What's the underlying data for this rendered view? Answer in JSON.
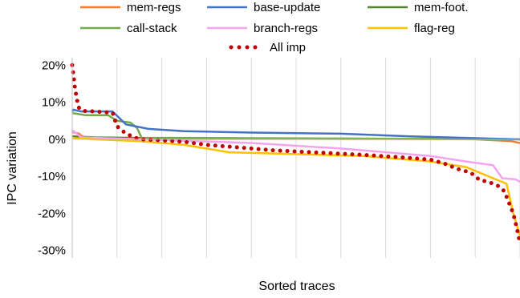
{
  "chart_data": {
    "type": "line",
    "xlabel": "Sorted traces",
    "ylabel": "IPC variation",
    "ylim": [
      -32,
      22
    ],
    "yticks": [
      20,
      10,
      0,
      -10,
      -20,
      -30
    ],
    "ytick_labels": [
      "20%",
      "10%",
      "0%",
      "-10%",
      "-20%",
      "-30%"
    ],
    "xlim": [
      0,
      100
    ],
    "x_grid_count": 10,
    "grid": "vertical",
    "legend_position": "top",
    "series": [
      {
        "name": "mem-regs",
        "color": "#ED7D31",
        "style": "solid",
        "x": [
          0,
          0.5,
          1.5,
          2.5,
          4,
          15,
          40,
          70,
          90,
          98,
          100
        ],
        "y": [
          2.0,
          1.8,
          1.5,
          0.5,
          0.2,
          0.1,
          0.1,
          0.1,
          0.0,
          -0.5,
          -1.0
        ]
      },
      {
        "name": "base-update",
        "color": "#4472C4",
        "style": "solid",
        "x": [
          0,
          0.3,
          0.8,
          2,
          9,
          12,
          17,
          25,
          40,
          60,
          75,
          90,
          100
        ],
        "y": [
          7.5,
          8.0,
          7.8,
          7.5,
          7.5,
          4.0,
          2.8,
          2.2,
          1.8,
          1.5,
          0.8,
          0.3,
          0.0
        ]
      },
      {
        "name": "mem-foot.",
        "color": "#548235",
        "style": "solid",
        "x": [
          0,
          5,
          20,
          40,
          60,
          80,
          100
        ],
        "y": [
          0.8,
          0.5,
          0.3,
          0.2,
          0.1,
          0.1,
          0.0
        ]
      },
      {
        "name": "call-stack",
        "color": "#70AD47",
        "style": "solid",
        "x": [
          0,
          0.3,
          3,
          8,
          10,
          13,
          14.5,
          15.5,
          40,
          60,
          80,
          100
        ],
        "y": [
          7.0,
          7.0,
          6.5,
          6.5,
          5.0,
          4.5,
          3.0,
          0.4,
          0.3,
          0.2,
          0.1,
          0.0
        ]
      },
      {
        "name": "branch-regs",
        "color": "#F4A3F0",
        "style": "solid",
        "x": [
          0,
          0.5,
          2,
          15,
          40,
          60,
          80,
          88,
          94,
          96,
          99,
          100
        ],
        "y": [
          2.5,
          2.0,
          0.5,
          0.0,
          -1.0,
          -2.5,
          -4.5,
          -6.0,
          -7.0,
          -10.5,
          -10.8,
          -11.5
        ]
      },
      {
        "name": "flag-reg",
        "color": "#FFC000",
        "style": "solid",
        "x": [
          0,
          0.5,
          5,
          15,
          25,
          35,
          50,
          65,
          80,
          88,
          94,
          97,
          98.5,
          100
        ],
        "y": [
          0.5,
          0.3,
          0.0,
          -0.5,
          -1.5,
          -3.5,
          -4.0,
          -4.5,
          -6.0,
          -7.5,
          -10.5,
          -12.0,
          -20.0,
          -26.0
        ]
      },
      {
        "name": "All imp",
        "color": "#C00000",
        "style": "dotted",
        "x": [
          0,
          0.3,
          0.6,
          1,
          1.5,
          2,
          3,
          5,
          7,
          9,
          10,
          12,
          15,
          20,
          25,
          30,
          35,
          40,
          45,
          50,
          55,
          60,
          65,
          70,
          75,
          80,
          83,
          86,
          89,
          91,
          93,
          95,
          96.5,
          97.5,
          98.5,
          99.3,
          100
        ],
        "y": [
          20,
          17,
          14,
          11,
          8.5,
          7.8,
          7.6,
          7.5,
          7.3,
          7.2,
          3.5,
          1.5,
          0.0,
          -0.3,
          -0.7,
          -1.5,
          -2.0,
          -2.5,
          -3.0,
          -3.3,
          -3.6,
          -3.9,
          -4.2,
          -4.6,
          -5.0,
          -5.5,
          -6.5,
          -8.0,
          -9.0,
          -11.0,
          -11.5,
          -12.5,
          -14.0,
          -17.0,
          -20.0,
          -24.0,
          -28.0
        ]
      }
    ]
  }
}
